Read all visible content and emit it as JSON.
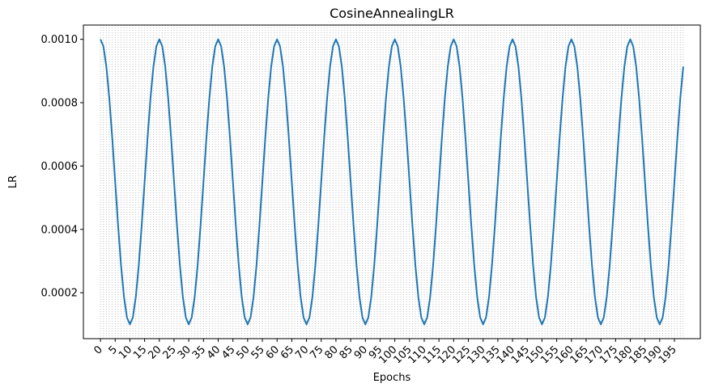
{
  "chart_data": {
    "type": "line",
    "title": "CosineAnnealingLR",
    "xlabel": "Epochs",
    "ylabel": "LR",
    "grid": {
      "x": true,
      "y": false,
      "style": "dotted"
    },
    "xlim": [
      -5.8,
      203.8
    ],
    "ylim": [
      5.5e-05,
      0.001045
    ],
    "x_ticks": [
      0,
      5,
      10,
      15,
      20,
      25,
      30,
      35,
      40,
      45,
      50,
      55,
      60,
      65,
      70,
      75,
      80,
      85,
      90,
      95,
      100,
      105,
      110,
      115,
      120,
      125,
      130,
      135,
      140,
      145,
      150,
      155,
      160,
      165,
      170,
      175,
      180,
      185,
      190,
      195
    ],
    "y_ticks": [
      0.0002,
      0.0004,
      0.0006,
      0.0008,
      0.001
    ],
    "y_tick_labels": [
      "0.0002",
      "0.0004",
      "0.0006",
      "0.0008",
      "0.0010"
    ],
    "series": [
      {
        "color": "#1f77b4",
        "schedule": {
          "lr_max": 0.001,
          "lr_min": 0.0001,
          "period": 20,
          "x_start": 0,
          "x_end": 198
        },
        "x": [
          0,
          2,
          4,
          6,
          8,
          10,
          12,
          14,
          16,
          18,
          20,
          22,
          24,
          26,
          28,
          30,
          32,
          34,
          36,
          38,
          40,
          42,
          44,
          46,
          48,
          50,
          52,
          54,
          56,
          58,
          60,
          62,
          64,
          66,
          68,
          70,
          72,
          74,
          76,
          78,
          80,
          82,
          84,
          86,
          88,
          90,
          92,
          94,
          96,
          98,
          100,
          102,
          104,
          106,
          108,
          110,
          112,
          114,
          116,
          118,
          120,
          122,
          124,
          126,
          128,
          130,
          132,
          134,
          136,
          138,
          140,
          142,
          144,
          146,
          148,
          150,
          152,
          154,
          156,
          158,
          160,
          162,
          164,
          166,
          168,
          170,
          172,
          174,
          176,
          178,
          180,
          182,
          184,
          186,
          188,
          190,
          192,
          194,
          196,
          198
        ],
        "values": [
          0.00098,
          0.00091,
          0.00074,
          0.0005,
          0.00029,
          0.0001,
          0.00018,
          0.00036,
          0.00062,
          0.00083,
          0.001,
          0.00091,
          0.00074,
          0.0005,
          0.00029,
          0.0001,
          0.00018,
          0.00036,
          0.00062,
          0.00083,
          0.001,
          0.00091,
          0.00074,
          0.0005,
          0.00029,
          0.0001,
          0.00018,
          0.00036,
          0.00062,
          0.00083,
          0.001,
          0.00091,
          0.00074,
          0.0005,
          0.00029,
          0.0001,
          0.00018,
          0.00036,
          0.00062,
          0.00083,
          0.001,
          0.00091,
          0.00074,
          0.0005,
          0.00029,
          0.0001,
          0.00018,
          0.00036,
          0.00062,
          0.00083,
          0.001,
          0.00091,
          0.00074,
          0.0005,
          0.00029,
          0.0001,
          0.00018,
          0.00036,
          0.00062,
          0.00083,
          0.001,
          0.00091,
          0.00074,
          0.0005,
          0.00029,
          0.0001,
          0.00018,
          0.00036,
          0.00062,
          0.00083,
          0.001,
          0.00091,
          0.00074,
          0.0005,
          0.00029,
          0.0001,
          0.00018,
          0.00036,
          0.00062,
          0.00083,
          0.001,
          0.00091,
          0.00074,
          0.0005,
          0.00029,
          0.0001,
          0.00018,
          0.00036,
          0.00062,
          0.00083,
          0.001,
          0.00091,
          0.00074,
          0.0005,
          0.00029,
          0.0001,
          0.00018,
          0.00036,
          0.00062,
          0.001
        ]
      }
    ]
  }
}
